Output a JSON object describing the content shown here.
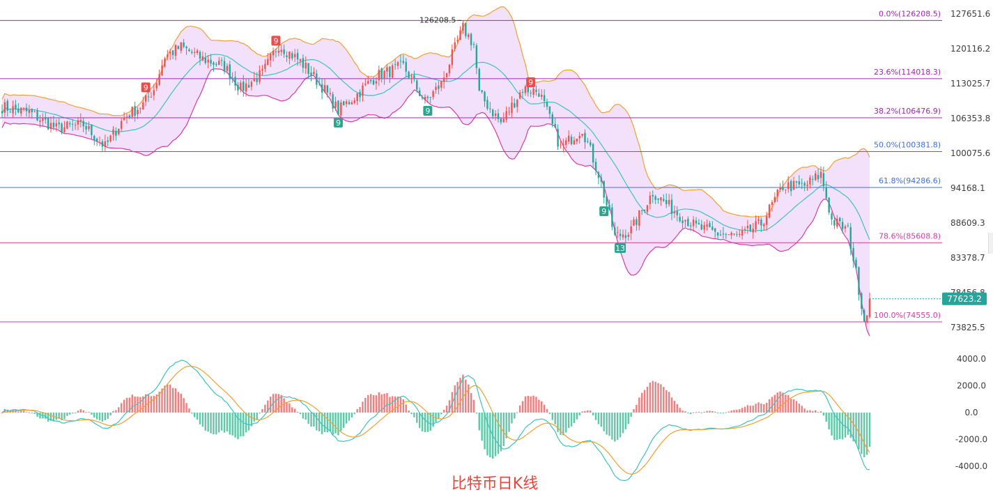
{
  "caption": "比特币日K线",
  "colors": {
    "up": "#ef5350",
    "down": "#26a69a",
    "band_fill": "#f3e1fb",
    "upper_band": "#f0a030",
    "lower_band": "#d63aa8",
    "middle_band": "#3cc2c0",
    "fib_line": "#9c27b0",
    "fib_blue": "#3f6fd6",
    "macd_dif": "#3cc2c0",
    "macd_dea": "#f0a030",
    "last_price_bg": "#26a69a"
  },
  "chart_data": [
    {
      "type": "candlestick",
      "title": "",
      "ylim": [
        70000,
        128500
      ],
      "y_ticks": [
        "127651.6",
        "120116.2",
        "113025.7",
        "106353.8",
        "100075.6",
        "94168.1",
        "88609.3",
        "83378.7",
        "78456.8",
        "73825.5"
      ],
      "y_tick_values": [
        127651.6,
        120116.2,
        113025.7,
        106353.8,
        100075.6,
        94168.1,
        88609.3,
        83378.7,
        78456.8,
        73825.5
      ],
      "last_price": "77623.2",
      "last_price_value": 77623.2,
      "high_annotation": "126208.5",
      "high_value": 126208.5,
      "fib_levels": [
        {
          "label": "0.0%(126208.5)",
          "value": 126208.5
        },
        {
          "label": "23.6%(114018.3)",
          "value": 114018.3
        },
        {
          "label": "38.2%(106476.9)",
          "value": 106476.9
        },
        {
          "label": "50.0%(100381.8)",
          "value": 100381.8
        },
        {
          "label": "61.8%(94286.6)",
          "value": 94286.6
        },
        {
          "label": "78.6%(85608.8)",
          "value": 85608.8
        },
        {
          "label": "100.0%(74555.0)",
          "value": 74555.0
        }
      ],
      "markers": [
        {
          "text": "9",
          "kind": "sell",
          "index": 53
        },
        {
          "text": "9",
          "kind": "sell",
          "index": 101
        },
        {
          "text": "9",
          "kind": "buy",
          "index": 124
        },
        {
          "text": "9",
          "kind": "buy",
          "index": 157
        },
        {
          "text": "9",
          "kind": "sell",
          "index": 195
        },
        {
          "text": "9",
          "kind": "buy",
          "index": 222
        },
        {
          "text": "13",
          "kind": "buy",
          "index": 228
        }
      ],
      "close_anchors": [
        [
          0,
          108500
        ],
        [
          10,
          107500
        ],
        [
          20,
          104500
        ],
        [
          30,
          105200
        ],
        [
          38,
          101200
        ],
        [
          45,
          106500
        ],
        [
          52,
          109000
        ],
        [
          56,
          112000
        ],
        [
          60,
          118500
        ],
        [
          66,
          120500
        ],
        [
          74,
          118000
        ],
        [
          82,
          116500
        ],
        [
          88,
          112000
        ],
        [
          96,
          115000
        ],
        [
          102,
          121000
        ],
        [
          110,
          117500
        ],
        [
          118,
          112500
        ],
        [
          124,
          107800
        ],
        [
          130,
          110500
        ],
        [
          138,
          114500
        ],
        [
          148,
          116500
        ],
        [
          156,
          109500
        ],
        [
          162,
          113000
        ],
        [
          170,
          124500
        ],
        [
          174,
          121000
        ],
        [
          176,
          111000
        ],
        [
          184,
          105500
        ],
        [
          192,
          112000
        ],
        [
          198,
          111500
        ],
        [
          206,
          101000
        ],
        [
          214,
          104500
        ],
        [
          220,
          96500
        ],
        [
          226,
          86500
        ],
        [
          232,
          87500
        ],
        [
          240,
          93500
        ],
        [
          248,
          90500
        ],
        [
          256,
          88000
        ],
        [
          264,
          87000
        ],
        [
          272,
          86500
        ],
        [
          280,
          88500
        ],
        [
          288,
          94500
        ],
        [
          296,
          94500
        ],
        [
          302,
          96500
        ],
        [
          306,
          89000
        ],
        [
          312,
          87500
        ],
        [
          318,
          74800
        ],
        [
          320,
          77623
        ]
      ]
    },
    {
      "type": "bar+line",
      "title": "",
      "ylim": [
        -5500,
        5000
      ],
      "y_ticks": [
        "4000.0",
        "2000.0",
        "0.0",
        "-2000.0",
        "-4000.0"
      ],
      "y_tick_values": [
        4000,
        2000,
        0,
        -2000,
        -4000
      ],
      "series": [
        {
          "values_from": "computed_from_closes"
        }
      ]
    }
  ]
}
